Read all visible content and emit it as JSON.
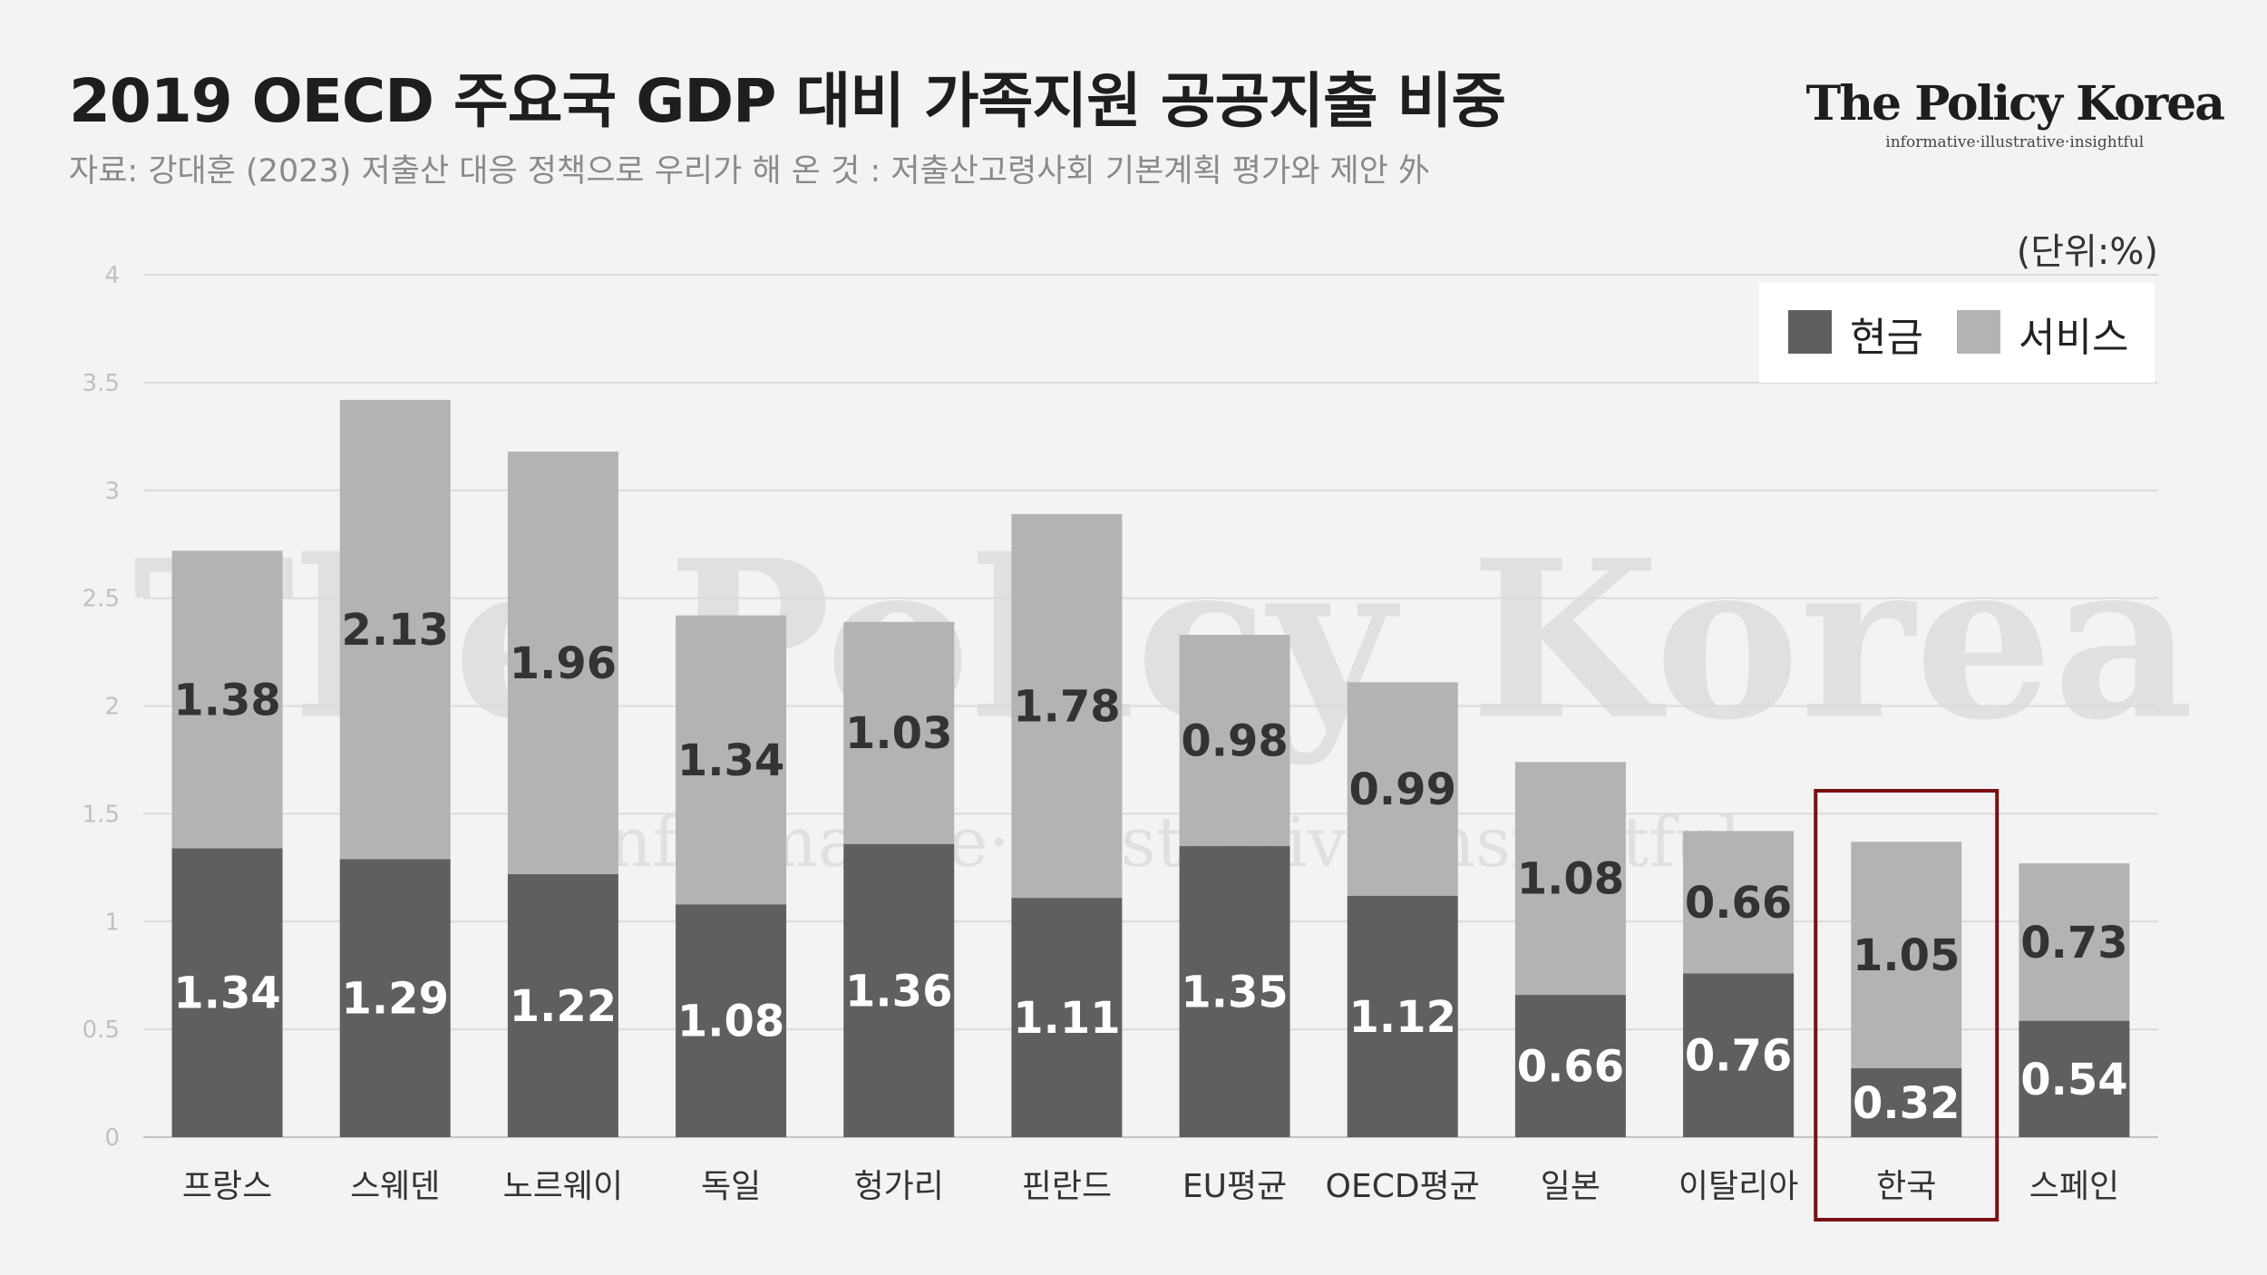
{
  "title": "2019 OECD 주요국 GDP 대비 가족지원 공공지출 비중",
  "source": "자료: 강대훈 (2023) 저출산 대응 정책으로 우리가 해 온 것 : 저출산고령사회 기본계획 평가와 제안 外",
  "brand": {
    "name": "The Policy Korea",
    "tagline": "informative·illustrative·insightful"
  },
  "unit_label": "(단위:%)",
  "colors": {
    "cash": "#5f5f5f",
    "service": "#b3b3b3",
    "highlight_box": "#7a1010",
    "background": "#f3f3f3"
  },
  "chart_data": {
    "type": "bar",
    "stacked": true,
    "title": "2019 OECD 주요국 GDP 대비 가족지원 공공지출 비중",
    "categories": [
      "프랑스",
      "스웨덴",
      "노르웨이",
      "독일",
      "헝가리",
      "핀란드",
      "EU평균",
      "OECD평균",
      "일본",
      "이탈리아",
      "한국",
      "스페인"
    ],
    "series": [
      {
        "name": "현금",
        "values": [
          1.34,
          1.29,
          1.22,
          1.08,
          1.36,
          1.11,
          1.35,
          1.12,
          0.66,
          0.76,
          0.32,
          0.54
        ]
      },
      {
        "name": "서비스",
        "values": [
          1.38,
          2.13,
          1.96,
          1.34,
          1.03,
          1.78,
          0.98,
          0.99,
          1.08,
          0.66,
          1.05,
          0.73
        ]
      }
    ],
    "yticks": [
      "0",
      "0.5",
      "1",
      "1.5",
      "2",
      "2.5",
      "3",
      "3.5",
      "4"
    ],
    "ylim": [
      0,
      4
    ],
    "grid": true,
    "legend_position": "top-right",
    "highlighted_category": "한국"
  }
}
